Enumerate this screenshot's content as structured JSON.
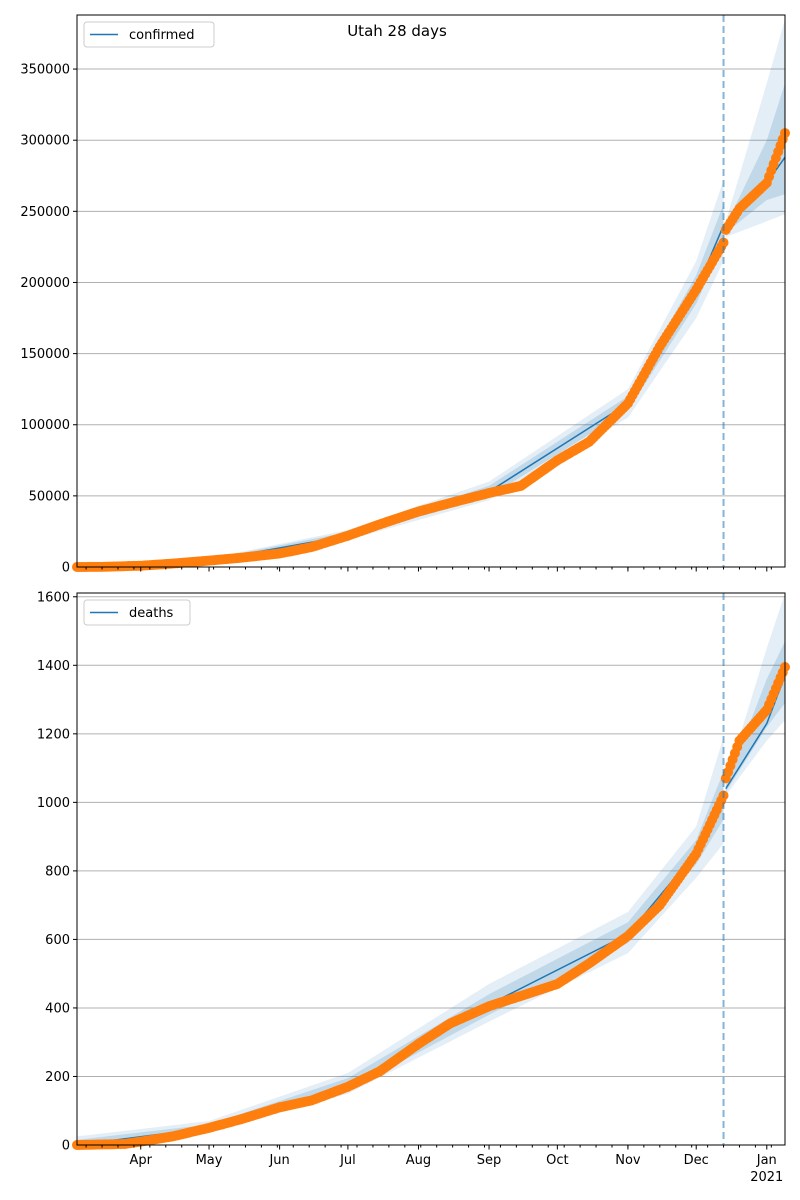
{
  "title": "Utah 28 days",
  "colors": {
    "fit": "#1f77b4",
    "observed": "#ff7f0e",
    "band": "#1f77b4",
    "forecast_start_line": "#1f77b4",
    "grid": "#b0b0b0"
  },
  "chart_data": [
    {
      "type": "line",
      "legend": "confirmed",
      "legend_placement": "top-left",
      "grid": "y",
      "xlim": [
        "2020-03-04",
        "2021-01-09"
      ],
      "ylim": [
        0,
        388000
      ],
      "yticks": [
        0,
        50000,
        100000,
        150000,
        200000,
        250000,
        300000,
        350000
      ],
      "forecast_start": "2020-12-13",
      "observed": {
        "dates": [
          "2020-03-04",
          "2020-03-15",
          "2020-04-01",
          "2020-04-15",
          "2020-05-01",
          "2020-05-15",
          "2020-06-01",
          "2020-06-15",
          "2020-07-01",
          "2020-07-15",
          "2020-08-01",
          "2020-08-15",
          "2020-09-01",
          "2020-09-15",
          "2020-10-01",
          "2020-10-15",
          "2020-11-01",
          "2020-11-15",
          "2020-12-01",
          "2020-12-13",
          "2020-12-14",
          "2020-12-20",
          "2021-01-01",
          "2021-01-09"
        ],
        "values": [
          0,
          100,
          900,
          2400,
          4500,
          6500,
          9500,
          14000,
          22000,
          30000,
          39000,
          45000,
          52000,
          57000,
          75000,
          88000,
          115000,
          155000,
          195000,
          228000,
          237000,
          252000,
          270000,
          305000
        ]
      },
      "fit": {
        "dates": [
          "2020-03-04",
          "2020-05-01",
          "2020-07-01",
          "2020-09-01",
          "2020-11-01",
          "2020-12-01",
          "2020-12-13",
          "2020-12-14",
          "2021-01-01",
          "2021-01-09"
        ],
        "values": [
          0,
          4500,
          22000,
          53000,
          115000,
          195000,
          240000,
          237000,
          270000,
          288000
        ],
        "outer_lo": [
          0,
          3000,
          19000,
          47000,
          105000,
          175000,
          215000,
          232000,
          243000,
          248000
        ],
        "outer_hi": [
          0,
          6000,
          26000,
          60000,
          125000,
          215000,
          272000,
          243000,
          340000,
          385000
        ],
        "inner_lo": [
          0,
          4000,
          20500,
          49500,
          110000,
          185000,
          228000,
          235000,
          258000,
          262000
        ],
        "inner_hi": [
          0,
          5500,
          24500,
          57000,
          120000,
          205000,
          255000,
          240000,
          300000,
          340000
        ]
      }
    },
    {
      "type": "line",
      "legend": "deaths",
      "legend_placement": "top-left",
      "grid": "y",
      "xlim": [
        "2020-03-04",
        "2021-01-09"
      ],
      "ylim": [
        0,
        1611
      ],
      "yticks": [
        0,
        200,
        400,
        600,
        800,
        1000,
        1200,
        1400,
        1600
      ],
      "xticks": [
        "Apr",
        "May",
        "Jun",
        "Jul",
        "Aug",
        "Sep",
        "Oct",
        "Nov",
        "Dec",
        "Jan"
      ],
      "xtick_year": "2021",
      "forecast_start": "2020-12-13",
      "observed": {
        "dates": [
          "2020-03-04",
          "2020-03-25",
          "2020-04-01",
          "2020-04-15",
          "2020-05-01",
          "2020-05-15",
          "2020-06-01",
          "2020-06-15",
          "2020-07-01",
          "2020-07-15",
          "2020-08-01",
          "2020-08-15",
          "2020-09-01",
          "2020-09-15",
          "2020-10-01",
          "2020-10-15",
          "2020-11-01",
          "2020-11-15",
          "2020-12-01",
          "2020-12-13",
          "2020-12-14",
          "2020-12-20",
          "2021-01-01",
          "2021-01-09"
        ],
        "values": [
          0,
          3,
          10,
          25,
          50,
          75,
          110,
          130,
          170,
          215,
          295,
          355,
          405,
          435,
          470,
          530,
          610,
          700,
          850,
          1020,
          1070,
          1180,
          1270,
          1395
        ]
      },
      "fit": {
        "dates": [
          "2020-03-04",
          "2020-05-01",
          "2020-07-01",
          "2020-09-01",
          "2020-11-01",
          "2020-12-01",
          "2020-12-13",
          "2020-12-14",
          "2021-01-01",
          "2021-01-09"
        ],
        "values": [
          0,
          50,
          175,
          410,
          615,
          855,
          1030,
          1040,
          1230,
          1370
        ],
        "outer_lo": [
          0,
          35,
          150,
          360,
          560,
          780,
          880,
          1020,
          1180,
          1240
        ],
        "outer_hi": [
          25,
          70,
          210,
          470,
          680,
          930,
          1190,
          1060,
          1450,
          1610
        ],
        "inner_lo": [
          0,
          42,
          160,
          380,
          590,
          820,
          950,
          1030,
          1220,
          1290
        ],
        "inner_hi": [
          15,
          60,
          195,
          440,
          650,
          890,
          1090,
          1050,
          1360,
          1470
        ]
      }
    }
  ]
}
